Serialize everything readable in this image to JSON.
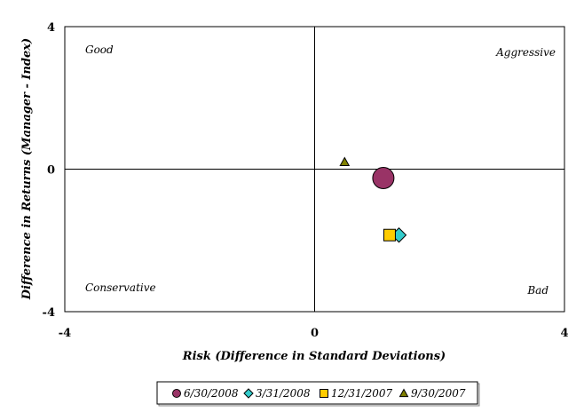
{
  "chart_data": {
    "type": "scatter",
    "xlabel": "Risk (Difference in Standard Deviations)",
    "ylabel": "Difference in Returns (Manager - Index)",
    "xlim": [
      -4,
      4
    ],
    "ylim": [
      -4,
      4
    ],
    "x_ticks": [
      "-4",
      "0",
      "4"
    ],
    "y_ticks": [
      "4",
      "0",
      "-4"
    ],
    "grid": false,
    "legend_position": "bottom",
    "quadrant_labels": {
      "top_left": "Good",
      "top_right": "Aggressive",
      "bottom_left": "Conservative",
      "bottom_right": "Bad"
    },
    "series": [
      {
        "name": "6/30/2008",
        "marker": "circle",
        "color": "#993366",
        "size": "large",
        "x": 1.1,
        "y": -0.25
      },
      {
        "name": "3/31/2008",
        "marker": "diamond",
        "color": "#33CCCC",
        "x": 1.35,
        "y": -1.85
      },
      {
        "name": "12/31/2007",
        "marker": "square",
        "color": "#FFCC00",
        "x": 1.2,
        "y": -1.85
      },
      {
        "name": "9/30/2007",
        "marker": "triangle",
        "color": "#808000",
        "x": 0.48,
        "y": 0.2
      }
    ]
  }
}
